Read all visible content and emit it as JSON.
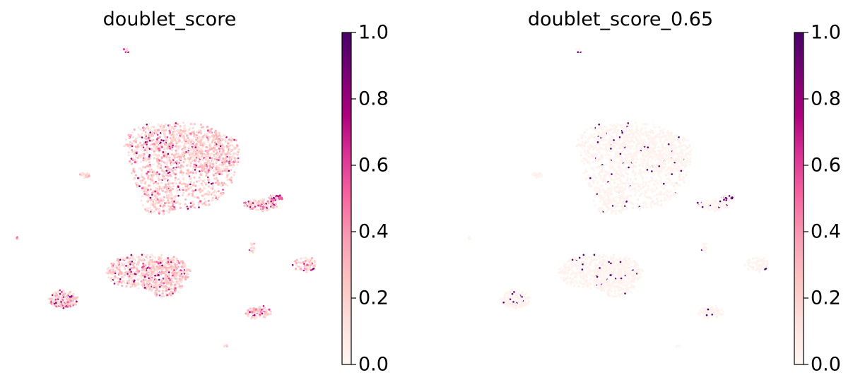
{
  "chart_data": [
    {
      "type": "scatter",
      "title": "doublet_score",
      "colorbar": {
        "min": 0.0,
        "max": 1.0,
        "ticks": [
          "0.0",
          "0.2",
          "0.4",
          "0.6",
          "0.8",
          "1.0"
        ],
        "colormap": "RdPu"
      },
      "xlabel": "",
      "ylabel": "",
      "axes_visible": false,
      "grid": false,
      "typical_value_range": [
        0.1,
        0.4
      ],
      "high_score_regions": "scattered hot spots up to ~0.9 within clusters"
    },
    {
      "type": "scatter",
      "title": "doublet_score_0.65",
      "colorbar": {
        "min": 0.0,
        "max": 1.0,
        "ticks": [
          "0.0",
          "0.2",
          "0.4",
          "0.6",
          "0.8",
          "1.0"
        ],
        "colormap": "RdPu"
      },
      "xlabel": "",
      "ylabel": "",
      "axes_visible": false,
      "grid": false,
      "typical_value_range": [
        0.0,
        0.05
      ],
      "high_score_regions": "sparse points near 1.0 (cells above 0.65 threshold)"
    }
  ],
  "colors": {
    "cmap_0": "#fff7f3",
    "cmap_02": "#fcc5c0",
    "cmap_04": "#f768a1",
    "cmap_06": "#dd3497",
    "cmap_08": "#ae017e",
    "cmap_1": "#49006a"
  }
}
